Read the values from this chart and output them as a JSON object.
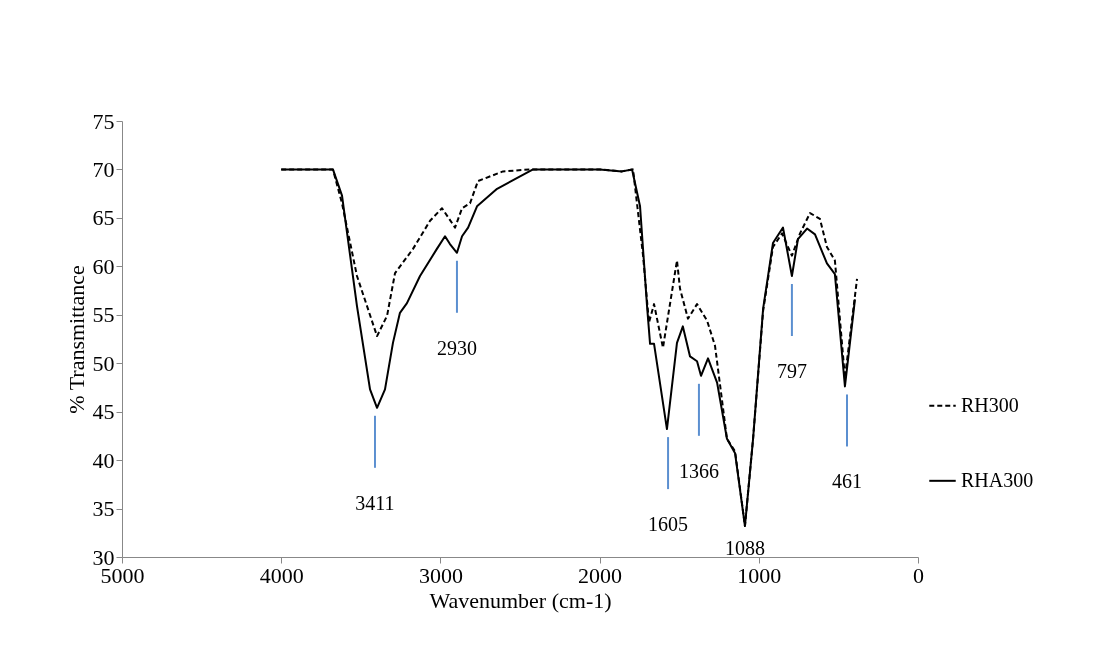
{
  "chart_data": {
    "type": "line",
    "xlabel": "Wavenumber (cm-1)",
    "ylabel": "% Transmittance",
    "xlim": [
      5000,
      0
    ],
    "xticks": [
      5000,
      4000,
      3000,
      2000,
      1000,
      0
    ],
    "ylim": [
      30,
      75
    ],
    "yticks": [
      30,
      35,
      40,
      45,
      50,
      55,
      60,
      65,
      70,
      75
    ],
    "grid": false,
    "legend": "right",
    "marker": "none",
    "series": [
      {
        "name": "RH300",
        "color": "#000000",
        "line_style": "dashed",
        "x": [
          4000,
          3675,
          3618,
          3524,
          3398,
          3335,
          3285,
          3172,
          3065,
          2990,
          2908,
          2864,
          2814,
          2764,
          2607,
          2437,
          2000,
          1859,
          1790,
          1727,
          1690,
          1658,
          1602,
          1514,
          1495,
          1445,
          1388,
          1325,
          1275,
          1200,
          1149,
          1087,
          1036,
          973,
          911,
          854,
          792,
          741,
          678,
          616,
          572,
          522,
          459,
          383
        ],
        "values": [
          70,
          70,
          66.5,
          59.0,
          52.8,
          54.9,
          59.3,
          61.8,
          64.7,
          66.0,
          64.0,
          66.0,
          66.5,
          68.8,
          69.8,
          70.0,
          70.0,
          69.8,
          70.0,
          61.1,
          54.2,
          56.1,
          51.6,
          60.6,
          57.7,
          54.6,
          56.1,
          54.4,
          51.8,
          42.2,
          40.9,
          33.2,
          42.2,
          55.4,
          62.0,
          63.4,
          61.1,
          63.4,
          65.5,
          64.9,
          62.0,
          60.6,
          48.5,
          58.7
        ]
      },
      {
        "name": "RHA300",
        "color": "#000000",
        "line_style": "solid",
        "x": [
          4000,
          3675,
          3618,
          3524,
          3442,
          3398,
          3348,
          3298,
          3254,
          3210,
          3128,
          3022,
          2971,
          2940,
          2896,
          2864,
          2826,
          2770,
          2644,
          2418,
          2000,
          1859,
          1796,
          1746,
          1702,
          1683,
          1658,
          1577,
          1514,
          1477,
          1432,
          1388,
          1363,
          1319,
          1262,
          1200,
          1149,
          1087,
          1036,
          973,
          911,
          848,
          792,
          754,
          697,
          647,
          572,
          522,
          459,
          396
        ],
        "values": [
          70,
          70.0,
          67.3,
          55.9,
          47.3,
          45.4,
          47.3,
          52.1,
          55.2,
          56.2,
          59.0,
          61.8,
          63.1,
          62.3,
          61.4,
          63.1,
          64.0,
          66.2,
          68.0,
          70.0,
          70.0,
          69.8,
          70.0,
          66.2,
          55.9,
          52.0,
          52.0,
          43.2,
          52.1,
          53.8,
          50.7,
          50.2,
          48.7,
          50.5,
          48.0,
          42.2,
          40.7,
          33.2,
          42.2,
          55.6,
          62.4,
          64.0,
          59.0,
          62.8,
          63.9,
          63.3,
          60.3,
          59.2,
          47.6,
          56.6
        ]
      }
    ],
    "annotations": [
      {
        "text": "3411",
        "x": 3411,
        "y": 45.4
      },
      {
        "text": "2930",
        "x": 2896,
        "y": 61.4
      },
      {
        "text": "1605",
        "x": 1570,
        "y": 43.2
      },
      {
        "text": "1366",
        "x": 1376,
        "y": 48.7
      },
      "1088",
      {
        "text": "797",
        "x": 792,
        "y": 59.0
      },
      {
        "text": "461",
        "x": 446,
        "y": 47.6
      }
    ]
  }
}
